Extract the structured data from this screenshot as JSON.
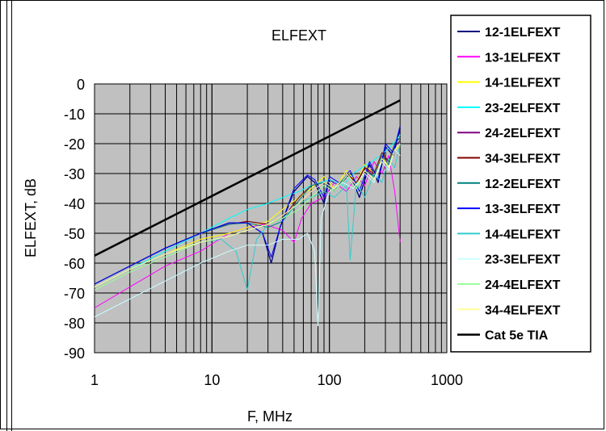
{
  "chart_data": {
    "type": "line",
    "title": "ELFEXT",
    "xlabel": "F, MHz",
    "ylabel": "ELFEXT, dB",
    "x_scale": "log",
    "xlim": [
      1,
      1000
    ],
    "ylim": [
      -90,
      0
    ],
    "x_ticks": [
      "1",
      "10",
      "100",
      "1000"
    ],
    "y_ticks": [
      "0",
      "-10",
      "-20",
      "-30",
      "-40",
      "-50",
      "-60",
      "-70",
      "-80",
      "-90"
    ],
    "grid": true,
    "legend_position": "right",
    "colors": {
      "plot_background": "#c0c0c0",
      "grid": "#000000"
    },
    "series": [
      {
        "name": "12-1ELFEXT",
        "color": "#000080",
        "width": 1.3,
        "x": [
          1,
          2,
          4,
          8,
          14,
          20,
          27,
          32,
          38,
          50,
          65,
          75,
          90,
          100,
          120,
          150,
          180,
          220,
          260,
          300,
          350,
          400
        ],
        "y": [
          -67,
          -61,
          -55,
          -50,
          -46.5,
          -46.5,
          -50,
          -60,
          -48,
          -36,
          -31,
          -33,
          -40,
          -32,
          -34,
          -30,
          -38,
          -27,
          -33,
          -21,
          -24,
          -15
        ]
      },
      {
        "name": "13-1ELFEXT",
        "color": "#ff00ff",
        "width": 1,
        "x": [
          1,
          2,
          4,
          8,
          14,
          20,
          28,
          40,
          50,
          58,
          70,
          90,
          110,
          140,
          170,
          200,
          240,
          280,
          320,
          360,
          400
        ],
        "y": [
          -75,
          -68,
          -61,
          -56,
          -50,
          -48,
          -47,
          -49,
          -53,
          -45,
          -40,
          -38,
          -33,
          -36,
          -31,
          -34,
          -26,
          -30,
          -24,
          -36,
          -53
        ]
      },
      {
        "name": "14-1ELFEXT",
        "color": "#ffff00",
        "width": 1,
        "x": [
          1,
          2,
          4,
          8,
          14,
          20,
          30,
          40,
          55,
          70,
          90,
          110,
          140,
          170,
          200,
          240,
          280,
          320,
          360,
          400
        ],
        "y": [
          -68,
          -62,
          -57,
          -52,
          -50,
          -48,
          -46,
          -42,
          -38,
          -35,
          -31,
          -35,
          -29,
          -33,
          -27,
          -30,
          -24,
          -28,
          -22,
          -21
        ]
      },
      {
        "name": "23-2ELFEXT",
        "color": "#00ffff",
        "width": 1,
        "x": [
          1,
          2,
          4,
          8,
          14,
          20,
          30,
          40,
          55,
          70,
          85,
          100,
          130,
          160,
          190,
          230,
          270,
          310,
          350,
          400
        ],
        "y": [
          -68,
          -62,
          -56,
          -50,
          -45,
          -42,
          -40,
          -38,
          -36,
          -34,
          -33,
          -32,
          -34,
          -30,
          -28,
          -26,
          -24,
          -22,
          -20,
          -17
        ]
      },
      {
        "name": "24-2ELFEXT",
        "color": "#800080",
        "width": 1,
        "x": [
          1,
          2,
          4,
          8,
          14,
          20,
          30,
          40,
          55,
          70,
          90,
          110,
          140,
          170,
          200,
          240,
          280,
          320,
          360,
          400
        ],
        "y": [
          -67,
          -61,
          -55,
          -50,
          -47,
          -46,
          -47,
          -44,
          -40,
          -36,
          -33,
          -35,
          -30,
          -34,
          -28,
          -31,
          -24,
          -26,
          -21,
          -19
        ]
      },
      {
        "name": "34-3ELFEXT",
        "color": "#800000",
        "width": 1,
        "x": [
          1,
          2,
          4,
          8,
          14,
          20,
          30,
          40,
          55,
          70,
          90,
          110,
          140,
          170,
          200,
          240,
          280,
          320,
          360,
          400
        ],
        "y": [
          -67,
          -61,
          -55,
          -50,
          -47,
          -46,
          -47,
          -45,
          -38,
          -34,
          -33,
          -36,
          -30,
          -33,
          -28,
          -30,
          -23,
          -26,
          -20,
          -18
        ]
      },
      {
        "name": "12-2ELFEXT",
        "color": "#008080",
        "width": 1,
        "x": [
          1,
          2,
          4,
          8,
          14,
          20,
          30,
          40,
          55,
          70,
          90,
          110,
          140,
          170,
          200,
          240,
          280,
          320,
          360,
          400
        ],
        "y": [
          -67,
          -61,
          -55,
          -50,
          -47,
          -46.5,
          -48,
          -46,
          -39,
          -34,
          -33,
          -36,
          -30,
          -34,
          -29,
          -31,
          -24,
          -27,
          -20,
          -18
        ]
      },
      {
        "name": "13-3ELFEXT",
        "color": "#0000ff",
        "width": 1,
        "x": [
          1,
          2,
          4,
          8,
          14,
          20,
          27,
          32,
          38,
          50,
          65,
          75,
          90,
          100,
          120,
          150,
          180,
          220,
          260,
          300,
          350,
          400
        ],
        "y": [
          -67,
          -61,
          -55,
          -50,
          -46.5,
          -46.5,
          -50,
          -58,
          -48,
          -35,
          -30.5,
          -32,
          -38,
          -31,
          -33,
          -29,
          -36,
          -26,
          -32,
          -20,
          -23,
          -14
        ]
      },
      {
        "name": "14-4ELFEXT",
        "color": "#33cccc",
        "width": 1,
        "x": [
          1,
          2,
          4,
          8,
          12,
          16,
          20,
          24,
          30,
          40,
          55,
          70,
          90,
          110,
          140,
          150,
          170,
          200,
          240,
          280,
          320,
          360,
          400
        ],
        "y": [
          -68,
          -62,
          -57,
          -53,
          -52,
          -56,
          -69,
          -52,
          -47,
          -45,
          -40,
          -38,
          -36,
          -38,
          -34,
          -59,
          -33,
          -38,
          -30,
          -33,
          -25,
          -28,
          -20
        ]
      },
      {
        "name": "23-3ELFEXT",
        "color": "#ccffff",
        "width": 1,
        "x": [
          1,
          2,
          4,
          8,
          14,
          20,
          30,
          40,
          55,
          65,
          75,
          80,
          85,
          100,
          130,
          160,
          200,
          240,
          280,
          320,
          360,
          400
        ],
        "y": [
          -78,
          -72,
          -66,
          -60,
          -56,
          -54,
          -54,
          -52,
          -52,
          -50,
          -56,
          -81,
          -45,
          -36,
          -33,
          -35,
          -30,
          -33,
          -26,
          -29,
          -22,
          -24
        ]
      },
      {
        "name": "24-4ELFEXT",
        "color": "#99ff99",
        "width": 1,
        "x": [
          1,
          2,
          4,
          8,
          14,
          20,
          30,
          40,
          55,
          70,
          90,
          110,
          140,
          170,
          200,
          240,
          280,
          320,
          360,
          400
        ],
        "y": [
          -69,
          -63,
          -58,
          -53,
          -51,
          -49,
          -47,
          -45,
          -42,
          -38,
          -34,
          -36,
          -31,
          -35,
          -29,
          -32,
          -25,
          -28,
          -22,
          -20
        ]
      },
      {
        "name": "34-4ELFEXT",
        "color": "#ffff99",
        "width": 1,
        "x": [
          1,
          2,
          4,
          8,
          14,
          20,
          30,
          40,
          55,
          70,
          90,
          110,
          140,
          170,
          200,
          240,
          280,
          320,
          360,
          400
        ],
        "y": [
          -68,
          -62,
          -57,
          -53,
          -51,
          -49,
          -47,
          -44,
          -40,
          -36,
          -33,
          -35,
          -30,
          -34,
          -29,
          -32,
          -25,
          -28,
          -22,
          -20
        ]
      },
      {
        "name": "Cat 5e TIA",
        "color": "#000000",
        "width": 2.5,
        "x": [
          1,
          400
        ],
        "y": [
          -57.5,
          -5.5
        ]
      }
    ]
  }
}
